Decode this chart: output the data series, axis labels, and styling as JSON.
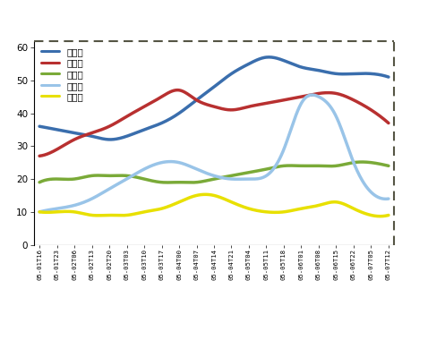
{
  "ylim": [
    0,
    62
  ],
  "yticks": [
    0,
    10,
    20,
    30,
    40,
    50,
    60
  ],
  "legend_labels": [
    "문재인",
    "홍준표",
    "안철수",
    "유승민",
    "심상정"
  ],
  "line_colors": [
    "#3a6ead",
    "#b83030",
    "#7aaa38",
    "#99c4e8",
    "#e8e000"
  ],
  "line_widths": [
    2.5,
    2.5,
    2.5,
    2.5,
    2.5
  ],
  "background_color": "#ffffff",
  "x_labels": [
    "05-01T16",
    "05-01T23",
    "05-02T06",
    "05-02T13",
    "05-02T20",
    "05-03T03",
    "05-03T10",
    "05-03T17",
    "05-04T00",
    "05-04T07",
    "05-04T14",
    "05-04T21",
    "05-05T04",
    "05-05T11",
    "05-05T18",
    "05-06T01",
    "05-06T08",
    "05-06T15",
    "05-06T22",
    "05-07T05",
    "05-07T12"
  ],
  "moon_jaein": [
    36,
    35,
    34,
    33,
    32,
    33,
    35,
    37,
    40,
    44,
    48,
    52,
    55,
    57,
    56,
    54,
    53,
    52,
    52,
    52,
    51
  ],
  "hong_junpyo": [
    27,
    29,
    32,
    34,
    36,
    39,
    42,
    45,
    47,
    44,
    42,
    41,
    42,
    43,
    44,
    45,
    46,
    46,
    44,
    41,
    37
  ],
  "ahn_cheolsu": [
    19,
    20,
    20,
    21,
    21,
    21,
    20,
    19,
    19,
    19,
    20,
    21,
    22,
    23,
    24,
    24,
    24,
    24,
    25,
    25,
    24
  ],
  "yoo_seungmin": [
    10,
    11,
    12,
    14,
    17,
    20,
    23,
    25,
    25,
    23,
    21,
    20,
    20,
    21,
    29,
    43,
    45,
    39,
    25,
    16,
    14
  ],
  "sim_sangjung": [
    10,
    10,
    10,
    9,
    9,
    9,
    10,
    11,
    13,
    15,
    15,
    13,
    11,
    10,
    10,
    11,
    12,
    13,
    11,
    9,
    9
  ]
}
